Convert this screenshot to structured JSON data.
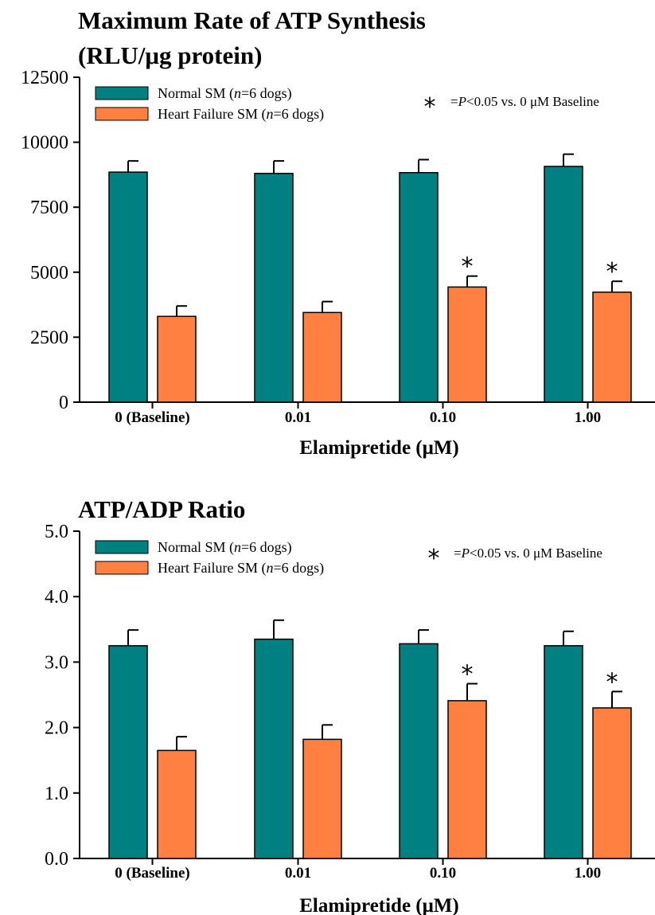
{
  "colors": {
    "normal": "#008080",
    "heart_failure": "#FF8040"
  },
  "legend": {
    "normal": {
      "prefix": "Normal SM (",
      "n": "n",
      "suffix": "=6 dogs)"
    },
    "heart_failure": {
      "prefix": "Heart Failure SM (",
      "n": "n",
      "suffix": "=6 dogs)"
    }
  },
  "significance_note": {
    "symbol": "*",
    "text_prefix": "=",
    "p": "P",
    "text_suffix": "<0.05 vs. 0 μM Baseline"
  },
  "chart_data": [
    {
      "type": "bar",
      "title": "Maximum Rate of ATP Synthesis",
      "subtitle": "(RLU/μg protein)",
      "xlabel": "Elamipretide (μM)",
      "ylabel": "",
      "ylim": [
        0,
        12500
      ],
      "yticks": [
        "0",
        "2500",
        "5000",
        "7500",
        "10000",
        "12500"
      ],
      "categories": [
        "0 (Baseline)",
        "0.01",
        "0.10",
        "1.00"
      ],
      "series": [
        {
          "name": "Normal SM (n=6 dogs)",
          "values": [
            8850,
            8800,
            8830,
            9070
          ],
          "errors": [
            430,
            480,
            500,
            470
          ]
        },
        {
          "name": "Heart Failure SM (n=6 dogs)",
          "values": [
            3300,
            3450,
            4430,
            4230
          ],
          "errors": [
            400,
            420,
            420,
            420
          ]
        }
      ],
      "significant": [
        false,
        false,
        true,
        true
      ],
      "legend_position": "top-left"
    },
    {
      "type": "bar",
      "title": "ATP/ADP Ratio",
      "subtitle": "",
      "xlabel": "Elamipretide (μM)",
      "ylabel": "",
      "ylim": [
        0,
        5.0
      ],
      "yticks": [
        "0.0",
        "1.0",
        "2.0",
        "3.0",
        "4.0",
        "5.0"
      ],
      "categories": [
        "0 (Baseline)",
        "0.01",
        "0.10",
        "1.00"
      ],
      "series": [
        {
          "name": "Normal SM (n=6 dogs)",
          "values": [
            3.25,
            3.35,
            3.28,
            3.25
          ],
          "errors": [
            0.24,
            0.29,
            0.21,
            0.22
          ]
        },
        {
          "name": "Heart Failure SM (n=6 dogs)",
          "values": [
            1.65,
            1.82,
            2.41,
            2.3
          ],
          "errors": [
            0.21,
            0.22,
            0.26,
            0.25
          ]
        }
      ],
      "significant": [
        false,
        false,
        true,
        true
      ],
      "legend_position": "top-left"
    }
  ]
}
